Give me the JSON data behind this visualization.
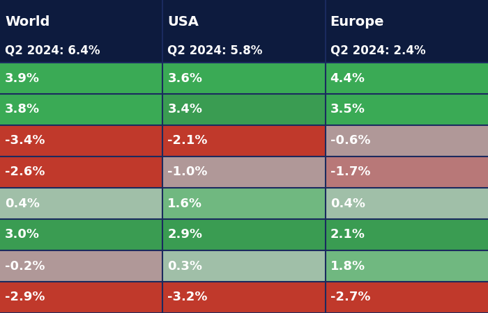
{
  "headers": [
    "World",
    "USA",
    "Europe"
  ],
  "subheaders": [
    "Q2 2024: 6.4%",
    "Q2 2024: 5.8%",
    "Q2 2024: 2.4%"
  ],
  "rows": [
    [
      "3.9%",
      "3.6%",
      "4.4%"
    ],
    [
      "3.8%",
      "3.4%",
      "3.5%"
    ],
    [
      "-3.4%",
      "-2.1%",
      "-0.6%"
    ],
    [
      "-2.6%",
      "-1.0%",
      "-1.7%"
    ],
    [
      "0.4%",
      "1.6%",
      "0.4%"
    ],
    [
      "3.0%",
      "2.9%",
      "2.1%"
    ],
    [
      "-0.2%",
      "0.3%",
      "1.8%"
    ],
    [
      "-2.9%",
      "-3.2%",
      "-2.7%"
    ]
  ],
  "values": [
    [
      3.9,
      3.6,
      4.4
    ],
    [
      3.8,
      3.4,
      3.5
    ],
    [
      -3.4,
      -2.1,
      -0.6
    ],
    [
      -2.6,
      -1.0,
      -1.7
    ],
    [
      0.4,
      1.6,
      0.4
    ],
    [
      3.0,
      2.9,
      2.1
    ],
    [
      -0.2,
      0.3,
      1.8
    ],
    [
      -2.9,
      -3.2,
      -2.7
    ]
  ],
  "cell_colors": [
    [
      "#3a9c52",
      "#3a9c52",
      "#3aaa55"
    ],
    [
      "#3a9c52",
      "#3a9c52",
      "#3a9c52"
    ],
    [
      "#c0392b",
      "#b06070",
      "#a09090"
    ],
    [
      "#b87878",
      "#b07878",
      "#b87878"
    ],
    [
      "#a8bfaa",
      "#a8bfaa",
      "#a8bfaa"
    ],
    [
      "#3a9c52",
      "#3a9c52",
      "#3a9c52"
    ],
    [
      "#a8a8b0",
      "#a8bfaa",
      "#3a9c52"
    ],
    [
      "#c0392b",
      "#c0392b",
      "#c0392b"
    ]
  ],
  "header_bg": "#0d1b3e",
  "header_text": "#ffffff",
  "separator_color": "#1a2a5e",
  "text_color": "#ffffff",
  "figsize": [
    7.0,
    4.5
  ],
  "dpi": 100
}
